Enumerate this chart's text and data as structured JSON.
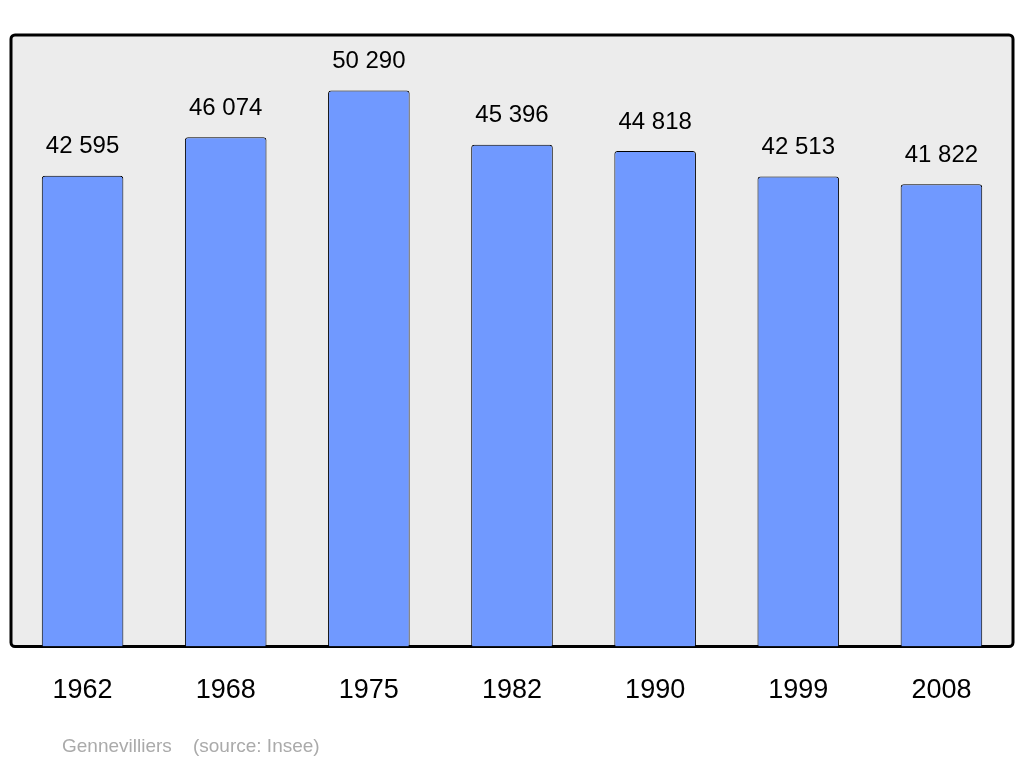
{
  "chart_data": {
    "type": "bar",
    "categories": [
      "1962",
      "1968",
      "1975",
      "1982",
      "1990",
      "1999",
      "2008"
    ],
    "values": [
      42595,
      46074,
      50290,
      45396,
      44818,
      42513,
      41822
    ],
    "value_labels": [
      "42 595",
      "46 074",
      "50 290",
      "45 396",
      "44 818",
      "42 513",
      "41 822"
    ],
    "color": "#7099ff",
    "annotations": [
      "Gennevilliers    (source: Insee)"
    ]
  }
}
